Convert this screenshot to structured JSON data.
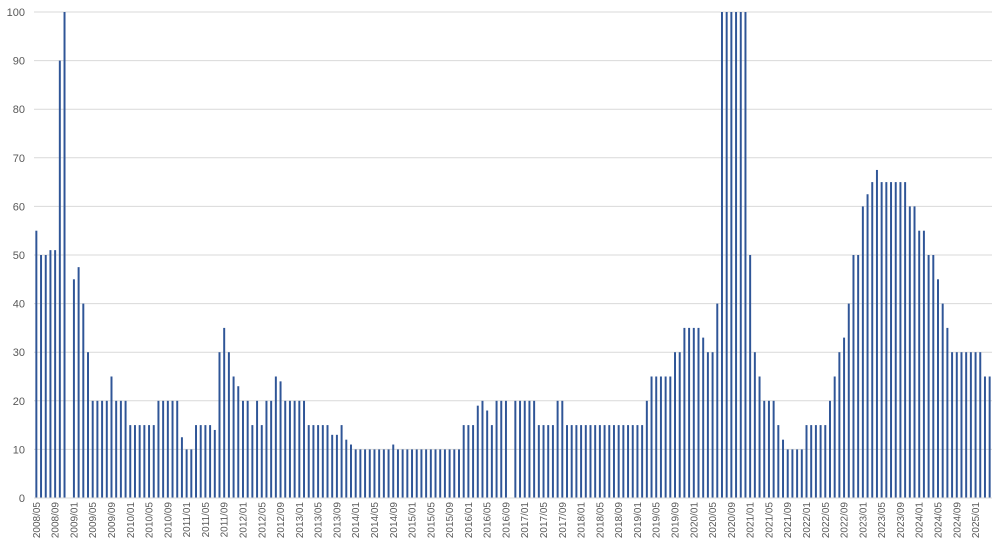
{
  "chart_data": {
    "type": "bar",
    "title": "",
    "xlabel": "",
    "ylabel": "",
    "ylim": [
      0,
      100
    ],
    "yticks": [
      0,
      10,
      20,
      30,
      40,
      50,
      60,
      70,
      80,
      90,
      100
    ],
    "grid": true,
    "start": "2008/05",
    "label_every": 4,
    "bar_color": "#2F5597",
    "grid_color": "#D9D9D9",
    "values": [
      55,
      50,
      50,
      51,
      51,
      90,
      100,
      0,
      45,
      47.5,
      40,
      30,
      20,
      20,
      20,
      20,
      25,
      20,
      20,
      20,
      15,
      15,
      15,
      15,
      15,
      15,
      20,
      20,
      20,
      20,
      20,
      12.5,
      10,
      10,
      15,
      15,
      15,
      15,
      14,
      30,
      35,
      30,
      25,
      23,
      20,
      20,
      15,
      20,
      15,
      20,
      20,
      25,
      24,
      20,
      20,
      20,
      20,
      20,
      15,
      15,
      15,
      15,
      15,
      13,
      13,
      15,
      12,
      11,
      10,
      10,
      10,
      10,
      10,
      10,
      10,
      10,
      11,
      10,
      10,
      10,
      10,
      10,
      10,
      10,
      10,
      10,
      10,
      10,
      10,
      10,
      10,
      15,
      15,
      15,
      19,
      20,
      18,
      15,
      20,
      20,
      20,
      0,
      20,
      20,
      20,
      20,
      20,
      15,
      15,
      15,
      15,
      20,
      20,
      15,
      15,
      15,
      15,
      15,
      15,
      15,
      15,
      15,
      15,
      15,
      15,
      15,
      15,
      15,
      15,
      15,
      20,
      25,
      25,
      25,
      25,
      25,
      30,
      30,
      35,
      35,
      35,
      35,
      33,
      30,
      30,
      40,
      100,
      100,
      100,
      100,
      100,
      100,
      50,
      30,
      25,
      20,
      20,
      20,
      15,
      12,
      10,
      10,
      10,
      10,
      15,
      15,
      15,
      15,
      15,
      20,
      25,
      30,
      33,
      40,
      50,
      50,
      60,
      62.5,
      65,
      67.5,
      65,
      65,
      65,
      65,
      65,
      65,
      60,
      60,
      55,
      55,
      50,
      50,
      45,
      40,
      35,
      30,
      30,
      30,
      30,
      30,
      30,
      30,
      25,
      25
    ]
  }
}
